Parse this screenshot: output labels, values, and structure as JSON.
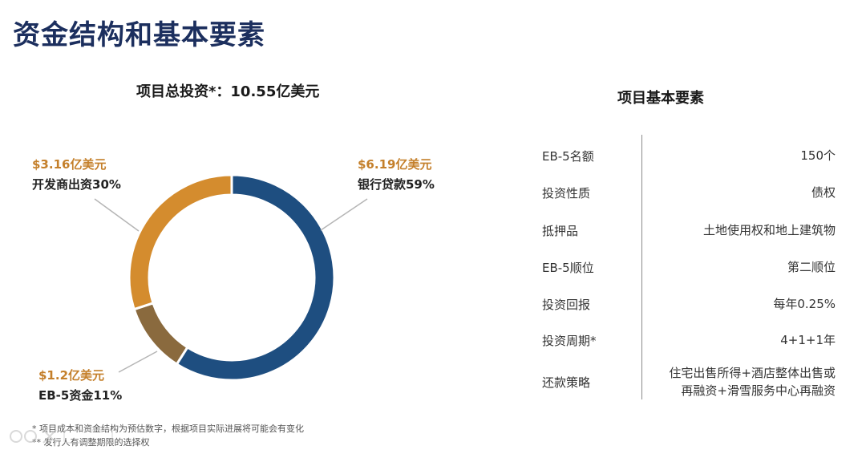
{
  "page": {
    "title": "资金结构和基本要素",
    "chart_heading": "项目总投资*：10.55亿美元",
    "table_heading": "项目基本要素"
  },
  "chart_data": {
    "type": "pie",
    "title": "项目总投资*：10.55亿美元",
    "donut": true,
    "slices": [
      {
        "amount": "$6.19亿美元",
        "label": "银行贷款59%",
        "percent": 59,
        "color": "#1e4e80"
      },
      {
        "amount": "$1.2亿美元",
        "label": "EB-5资金11%",
        "percent": 11,
        "color": "#8a6a3e"
      },
      {
        "amount": "$3.16亿美元",
        "label": "开发商出资30%",
        "percent": 30,
        "color": "#d48c2e"
      }
    ]
  },
  "table": {
    "rows": [
      {
        "key": "EB-5名额",
        "value": "150个"
      },
      {
        "key": "投资性质",
        "value": "债权"
      },
      {
        "key": "抵押品",
        "value": "土地使用权和地上建筑物"
      },
      {
        "key": "EB-5顺位",
        "value": "第二顺位"
      },
      {
        "key": "投资回报",
        "value": "每年0.25%"
      },
      {
        "key": "投资周期*",
        "value": "4+1+1年"
      },
      {
        "key": "还款策略",
        "value_lines": [
          "住宅出售所得+酒店整体出售或",
          "再融资+滑雪服务中心再融资"
        ]
      }
    ]
  },
  "footnotes": {
    "line1": "* 项目成本和资金结构为预估数字，根据项目实际进展将可能会有变化",
    "line2": "** 发行人有调整期限的选择权"
  },
  "colors": {
    "title": "#1c2f5e",
    "amount_label": "#c47f2a"
  }
}
